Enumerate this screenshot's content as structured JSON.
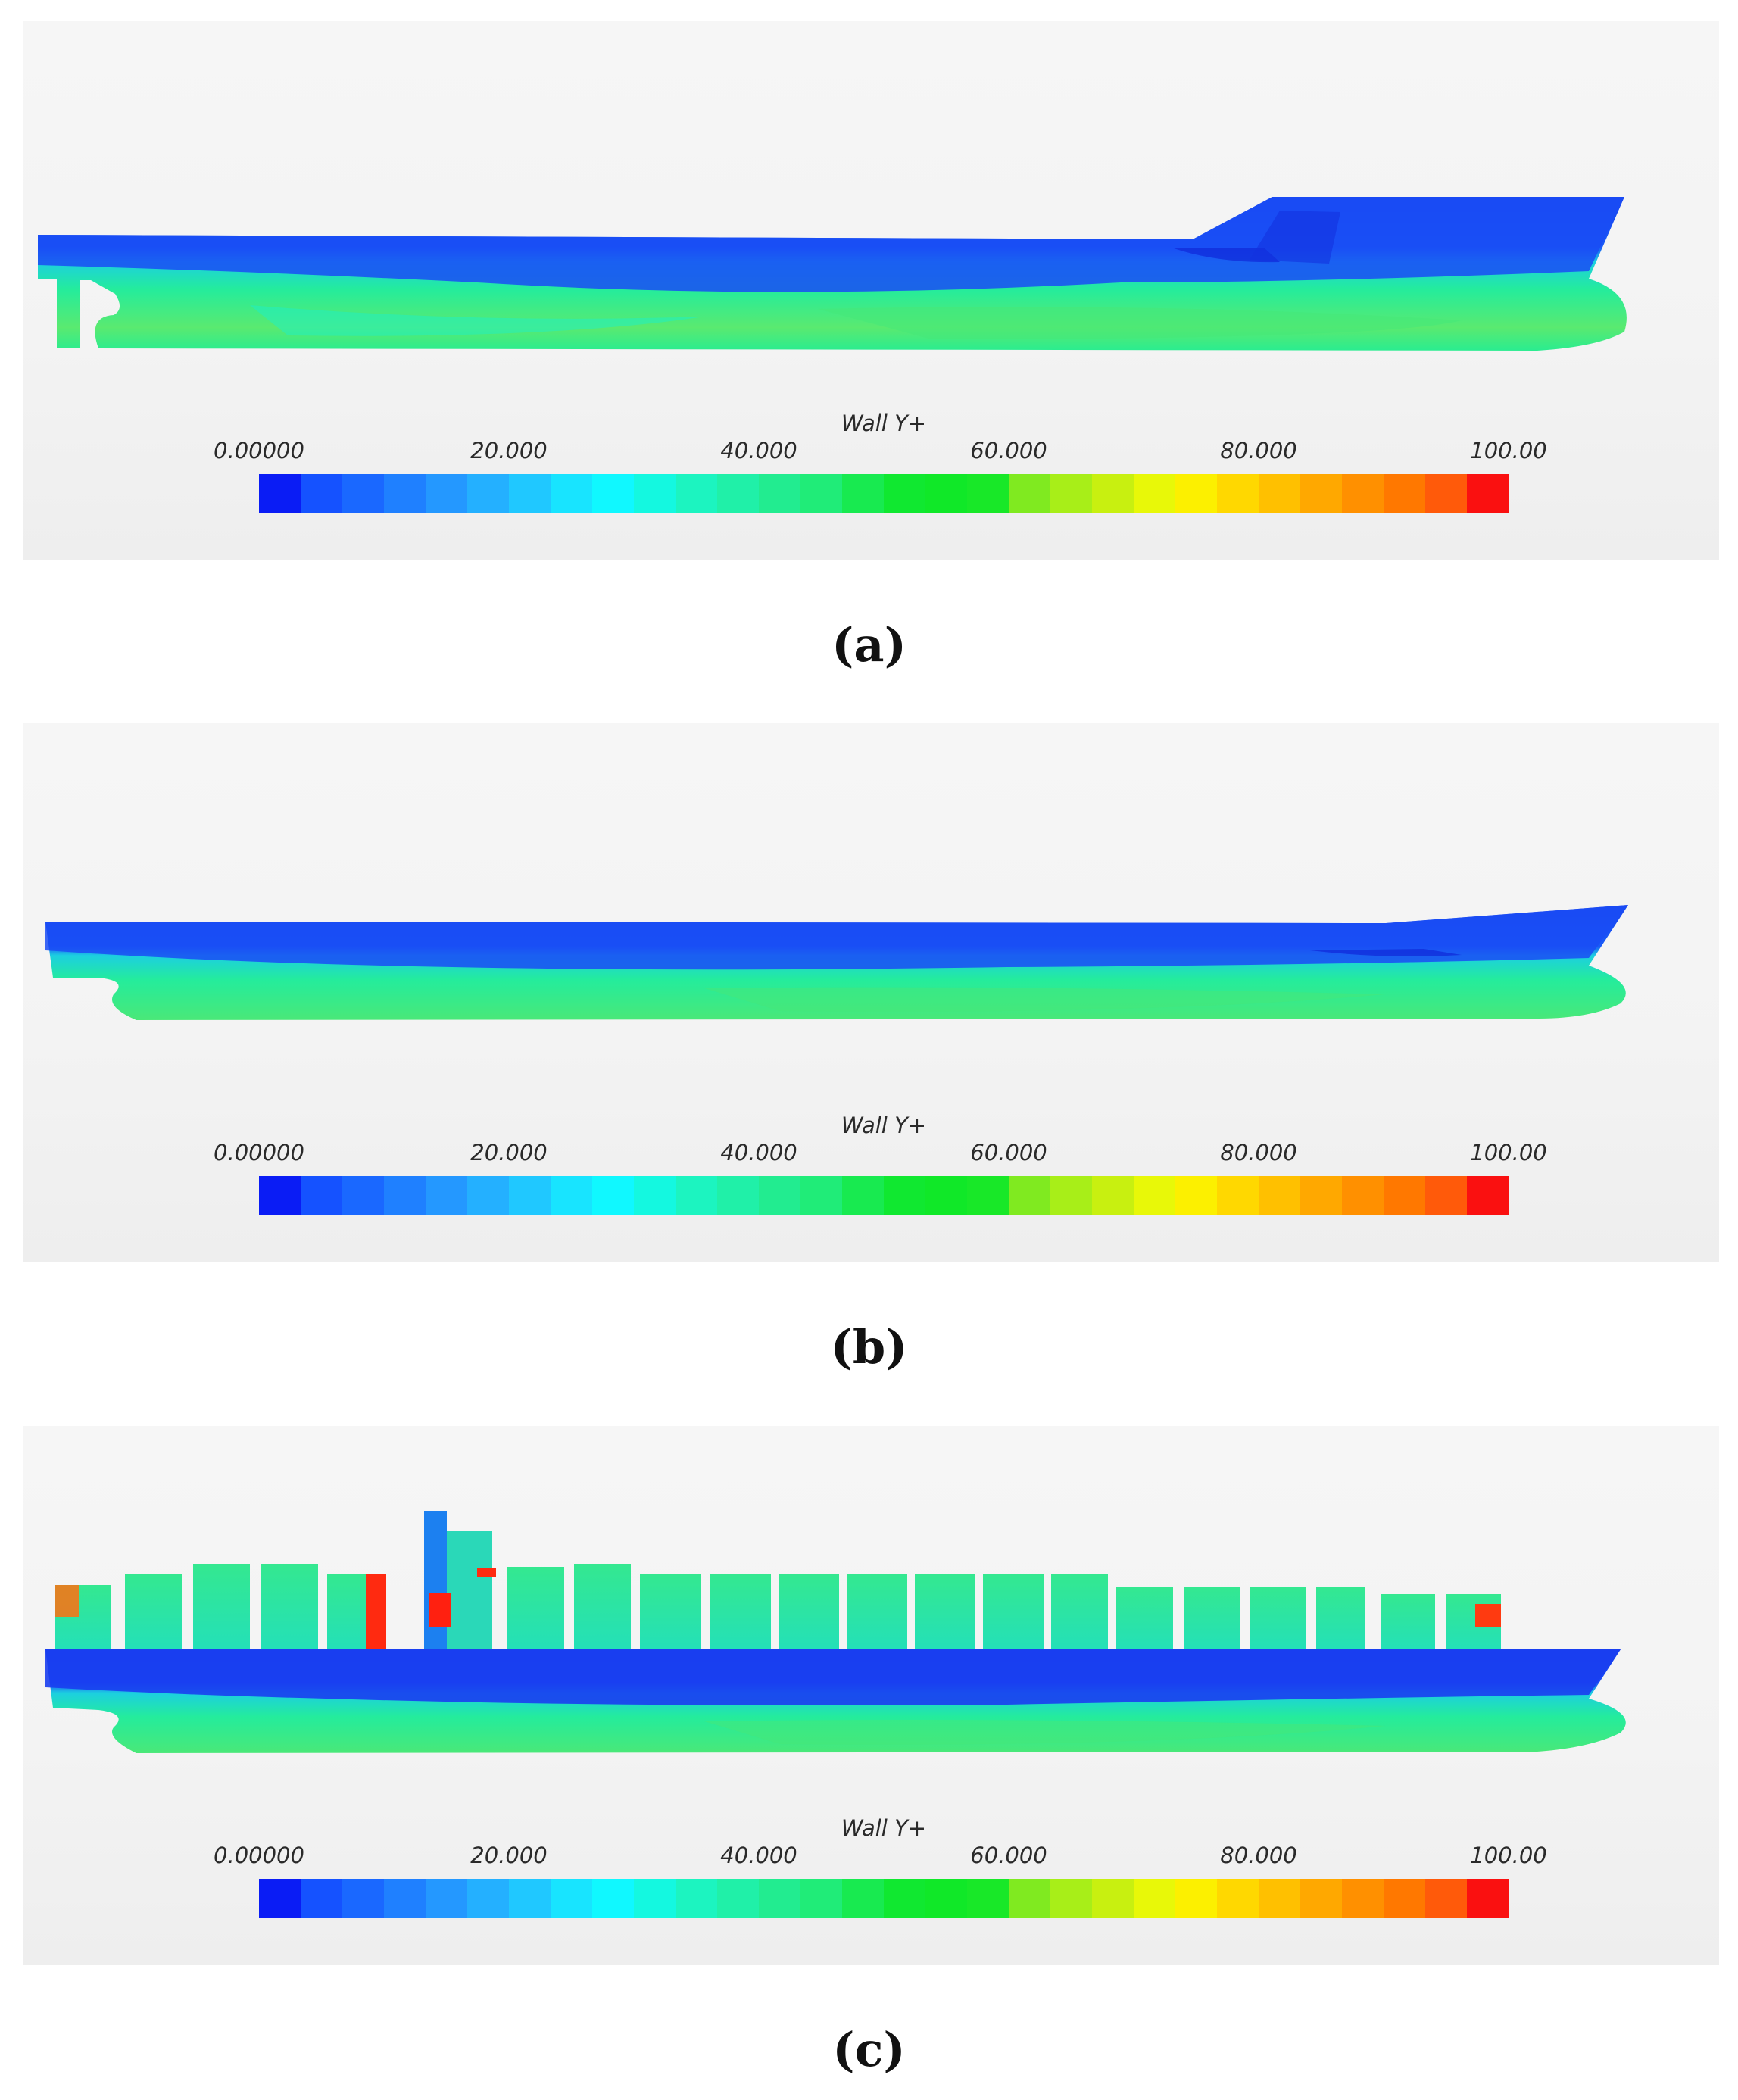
{
  "panels": [
    {
      "id": "a",
      "caption": "(a)",
      "legend_title": "Wall Y+",
      "ticks": [
        "0.00000",
        "20.000",
        "40.000",
        "60.000",
        "80.000",
        "100.00"
      ]
    },
    {
      "id": "b",
      "caption": "(b)",
      "legend_title": "Wall Y+",
      "ticks": [
        "0.00000",
        "20.000",
        "40.000",
        "60.000",
        "80.000",
        "100.00"
      ]
    },
    {
      "id": "c",
      "caption": "(c)",
      "legend_title": "Wall Y+",
      "ticks": [
        "0.00000",
        "20.000",
        "40.000",
        "60.000",
        "80.000",
        "100.00"
      ]
    }
  ],
  "colorbar": {
    "min": 0,
    "max": 100,
    "colors": [
      "#0a1cf5",
      "#1552ff",
      "#1a68ff",
      "#1f80ff",
      "#2498ff",
      "#24b0ff",
      "#20c8ff",
      "#18e4ff",
      "#10f8ff",
      "#14f8e0",
      "#1cf4c0",
      "#20f0a8",
      "#22ec90",
      "#20ec78",
      "#18ea50",
      "#10e830",
      "#10e828",
      "#18e828",
      "#80ea20",
      "#a8ee18",
      "#c8f010",
      "#e8f808",
      "#fcf000",
      "#ffd800",
      "#ffc000",
      "#ffa800",
      "#ff9000",
      "#ff7800",
      "#ff5a0a",
      "#fa1010"
    ]
  },
  "colors": {
    "hull_top": "#1a3ef0",
    "hull_bottom": "#22e8a8",
    "container": "#30e890",
    "hot": "#ff3a10"
  }
}
